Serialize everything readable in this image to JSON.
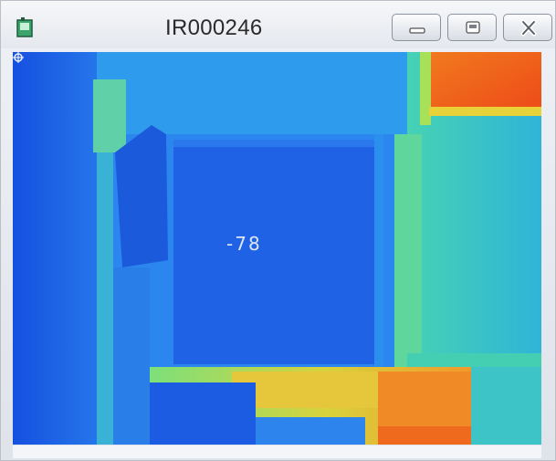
{
  "window": {
    "title": "IR000246"
  },
  "controls": {
    "minimize_icon": "minimize-icon",
    "maximize_icon": "restore-icon",
    "close_icon": "close-icon"
  },
  "thermal_image": {
    "spot_value": "-78",
    "marker": "crosshair-icon"
  },
  "colors": {
    "cold": "#1e5ee8",
    "cool": "#2f8df0",
    "mid": "#38c9c4",
    "warm": "#8fe06a",
    "hot": "#f4a42c",
    "hottest": "#f05a1a"
  }
}
